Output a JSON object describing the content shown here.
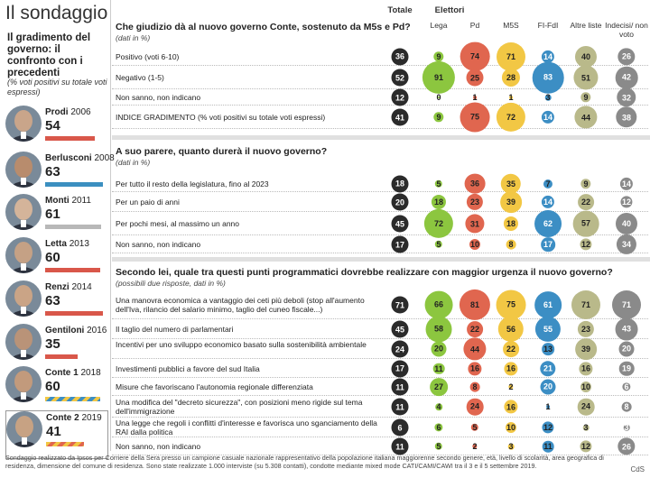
{
  "title": "Il sondaggio",
  "left": {
    "heading": "Il gradimento del governo: il confronto con i precedenti",
    "subheading": "(% voti positivi su totale voti espressi)",
    "governments": [
      {
        "name": "Prodi",
        "year": "2006",
        "value": 54,
        "color": "#d9574a"
      },
      {
        "name": "Berlusconi",
        "year": "2008",
        "value": 63,
        "color": "#3b8fc0"
      },
      {
        "name": "Monti",
        "year": "2011",
        "value": 61,
        "color": "#b8b8b8"
      },
      {
        "name": "Letta",
        "year": "2013",
        "value": 60,
        "color": "#d9574a"
      },
      {
        "name": "Renzi",
        "year": "2014",
        "value": 63,
        "color": "#d9574a"
      },
      {
        "name": "Gentiloni",
        "year": "2016",
        "value": 35,
        "color": "#d9574a"
      },
      {
        "name": "Conte 1",
        "year": "2018",
        "value": 60,
        "color": "stripe-yellow-blue"
      },
      {
        "name": "Conte 2",
        "year": "2019",
        "value": 41,
        "color": "stripe-yellow-red"
      }
    ]
  },
  "headers": {
    "total": "Totale",
    "voters": "Elettori",
    "columns": [
      "Lega",
      "Pd",
      "M5S",
      "FI-FdI",
      "Altre liste",
      "Indecisi/ non voto"
    ]
  },
  "colors": {
    "total": "#2b2b2b",
    "Lega": "#8cc63f",
    "Pd": "#e0664f",
    "M5S": "#f2c744",
    "FI-FdI": "#3c8ec4",
    "Altre liste": "#b9b98a",
    "Indecisi": "#8a8a8a"
  },
  "chart_data": [
    {
      "type": "table",
      "title": "Che giudizio dà al nuovo governo Conte, sostenuto da M5s e Pd?",
      "note": "(dati in %)",
      "columns": [
        "Totale",
        "Lega",
        "Pd",
        "M5S",
        "FI-FdI",
        "Altre liste",
        "Indecisi/ non voto"
      ],
      "rows": [
        {
          "label": "Positivo (voti 6-10)",
          "values": [
            36,
            9,
            74,
            71,
            14,
            40,
            26
          ]
        },
        {
          "label": "Negativo (1-5)",
          "values": [
            52,
            91,
            25,
            28,
            83,
            51,
            42
          ]
        },
        {
          "label": "Non sanno, non indicano",
          "values": [
            12,
            0,
            1,
            1,
            3,
            9,
            32
          ]
        },
        {
          "label": "INDICE GRADIMENTO (% voti positivi su totale voti espressi)",
          "values": [
            41,
            9,
            75,
            72,
            14,
            44,
            38
          ]
        }
      ]
    },
    {
      "type": "table",
      "title": "A suo parere, quanto durerà il nuovo governo?",
      "note": "(dati in %)",
      "columns": [
        "Totale",
        "Lega",
        "Pd",
        "M5S",
        "FI-FdI",
        "Altre liste",
        "Indecisi/ non voto"
      ],
      "rows": [
        {
          "label": "Per tutto il resto della legislatura, fino al 2023",
          "values": [
            18,
            5,
            36,
            35,
            7,
            9,
            14
          ]
        },
        {
          "label": "Per un paio di anni",
          "values": [
            20,
            18,
            23,
            39,
            14,
            22,
            12
          ]
        },
        {
          "label": "Per pochi mesi, al massimo un anno",
          "values": [
            45,
            72,
            31,
            18,
            62,
            57,
            40
          ]
        },
        {
          "label": "Non sanno, non indicano",
          "values": [
            17,
            5,
            10,
            8,
            17,
            12,
            34
          ]
        }
      ]
    },
    {
      "type": "table",
      "title": "Secondo lei, quale tra questi punti programmatici dovrebbe realizzare con maggior urgenza il nuovo governo?",
      "note": "(possibili due risposte, dati in %)",
      "columns": [
        "Totale",
        "Lega",
        "Pd",
        "M5S",
        "FI-FdI",
        "Altre liste",
        "Indecisi/ non voto"
      ],
      "rows": [
        {
          "label": "Una manovra economica a vantaggio dei ceti più deboli (stop all'aumento dell'Iva, rilancio del salario minimo, taglio del cuneo fiscale...)",
          "values": [
            71,
            66,
            81,
            75,
            61,
            71,
            71
          ]
        },
        {
          "label": "Il taglio del numero di parlamentari",
          "values": [
            45,
            58,
            22,
            56,
            55,
            23,
            43
          ]
        },
        {
          "label": "Incentivi per uno sviluppo economico basato sulla sostenibilità ambientale",
          "values": [
            24,
            20,
            44,
            22,
            13,
            39,
            20
          ]
        },
        {
          "label": "Investimenti pubblici a favore del sud Italia",
          "values": [
            17,
            11,
            16,
            16,
            21,
            16,
            19
          ]
        },
        {
          "label": "Misure che favoriscano l'autonomia regionale differenziata",
          "values": [
            11,
            27,
            8,
            2,
            20,
            10,
            6
          ]
        },
        {
          "label": "Una modifica del \"decreto sicurezza\", con posizioni meno rigide sul tema dell'immigrazione",
          "values": [
            11,
            4,
            24,
            16,
            1,
            24,
            8
          ]
        },
        {
          "label": "Una legge che regoli i conflitti d'interesse e favorisca uno sganciamento della RAI dalla politica",
          "values": [
            6,
            6,
            5,
            10,
            12,
            3,
            3
          ]
        },
        {
          "label": "Non sanno, non indicano",
          "values": [
            11,
            5,
            2,
            3,
            11,
            12,
            26
          ]
        }
      ]
    }
  ],
  "footnote": "Sondaggio realizzato da Ipsos per Corriere della Sera presso un campione casuale nazionale rappresentativo della popolazione italiana maggiorenne secondo genere, età, livello di scolarità, area geografica di residenza, dimensione del comune di residenza. Sono state realizzate 1.000 interviste (su 5.308 contatti), condotte mediante mixed mode CATI/CAMI/CAWI tra il 3 e il 5 settembre 2019.",
  "credit": "CdS"
}
